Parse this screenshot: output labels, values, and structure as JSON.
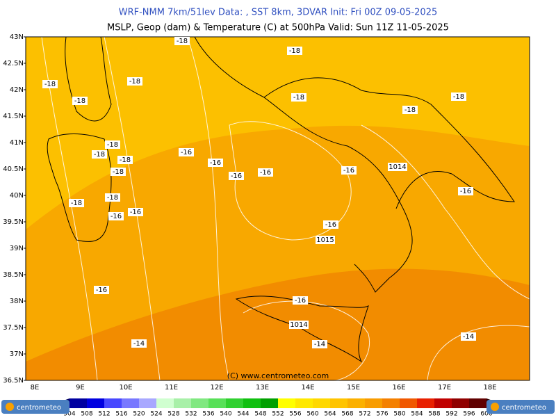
{
  "header": {
    "line1": "WRF-NMM 7km/51lev   Data: , SST 8km, 3DVAR   Init: Fri 00Z 09-05-2025",
    "line2": "MSLP, Geop (dam) & Temperature (C) at 500hPa   Valid: Sun 11Z 11-05-2025"
  },
  "lat_labels": [
    "43N",
    "42.5N",
    "42N",
    "41.5N",
    "41N",
    "40.5N",
    "40N",
    "39.5N",
    "39N",
    "38.5N",
    "38N",
    "37.5N",
    "37N",
    "36.5N"
  ],
  "lon_labels": [
    "8E",
    "9E",
    "10E",
    "11E",
    "12E",
    "13E",
    "14E",
    "15E",
    "16E",
    "17E",
    "18E"
  ],
  "contour_labels": [
    "-18",
    "-18",
    "-18",
    "-18",
    "-18",
    "-18",
    "-18",
    "-18",
    "-18",
    "-18",
    "-18",
    "-18",
    "-18",
    "-18",
    "-16",
    "-16",
    "-16",
    "-16",
    "-16",
    "-16",
    "-16",
    "-16",
    "-16",
    "-16",
    "-16",
    "-14",
    "-14",
    "-14",
    "1014",
    "1014",
    "1015"
  ],
  "copyright": "(C) www.centrometeo.com",
  "logo": "centrometeo",
  "colorbar": {
    "labels": [
      "504",
      "508",
      "512",
      "516",
      "520",
      "524",
      "528",
      "532",
      "536",
      "540",
      "544",
      "548",
      "552",
      "556",
      "560",
      "564",
      "568",
      "572",
      "576",
      "580",
      "584",
      "588",
      "592",
      "596",
      "600"
    ],
    "colors": [
      "#0000a0",
      "#0000e0",
      "#4848ff",
      "#7878ff",
      "#a8a8ff",
      "#d0ffd0",
      "#a8f0a8",
      "#80e880",
      "#58e058",
      "#30d030",
      "#10c010",
      "#00a000",
      "#ffff00",
      "#ffe800",
      "#ffd800",
      "#ffc400",
      "#fbb000",
      "#f89c00",
      "#f48000",
      "#f05800",
      "#e82000",
      "#c00000",
      "#900000",
      "#600000"
    ]
  }
}
